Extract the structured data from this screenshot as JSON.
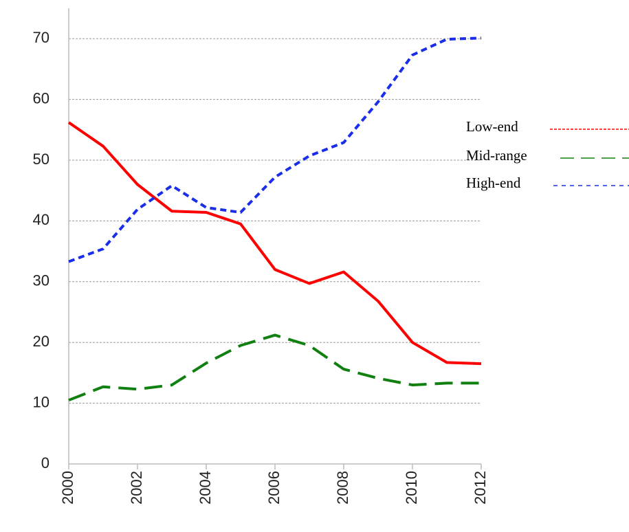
{
  "chart_data": {
    "type": "line",
    "x": [
      2000,
      2001,
      2002,
      2003,
      2004,
      2005,
      2006,
      2007,
      2008,
      2009,
      2010,
      2011,
      2012
    ],
    "series": [
      {
        "name": "Low-end",
        "color": "#ff0000",
        "values": [
          56.2,
          52.3,
          46,
          41.6,
          41.4,
          39.5,
          32,
          29.7,
          31.6,
          26.8,
          20,
          16.7,
          16.5
        ]
      },
      {
        "name": "Mid-range",
        "color": "#108010",
        "values": [
          10.5,
          12.7,
          12.3,
          13,
          16.6,
          19.5,
          21.2,
          19.5,
          15.6,
          14.1,
          13,
          13.3,
          13.3
        ]
      },
      {
        "name": "High-end",
        "color": "#1a2ee8",
        "values": [
          33.3,
          35.4,
          41.9,
          45.8,
          42.2,
          41.4,
          47.2,
          50.7,
          52.9,
          59.6,
          67.3,
          69.9,
          70.1
        ]
      }
    ],
    "xlim": [
      2000,
      2012
    ],
    "xticks": [
      2000,
      2002,
      2004,
      2006,
      2008,
      2010,
      2012
    ],
    "ylim": [
      0,
      75
    ],
    "yticks": [
      0,
      10,
      20,
      30,
      40,
      50,
      60,
      70
    ],
    "grid": true,
    "legend": "right"
  }
}
